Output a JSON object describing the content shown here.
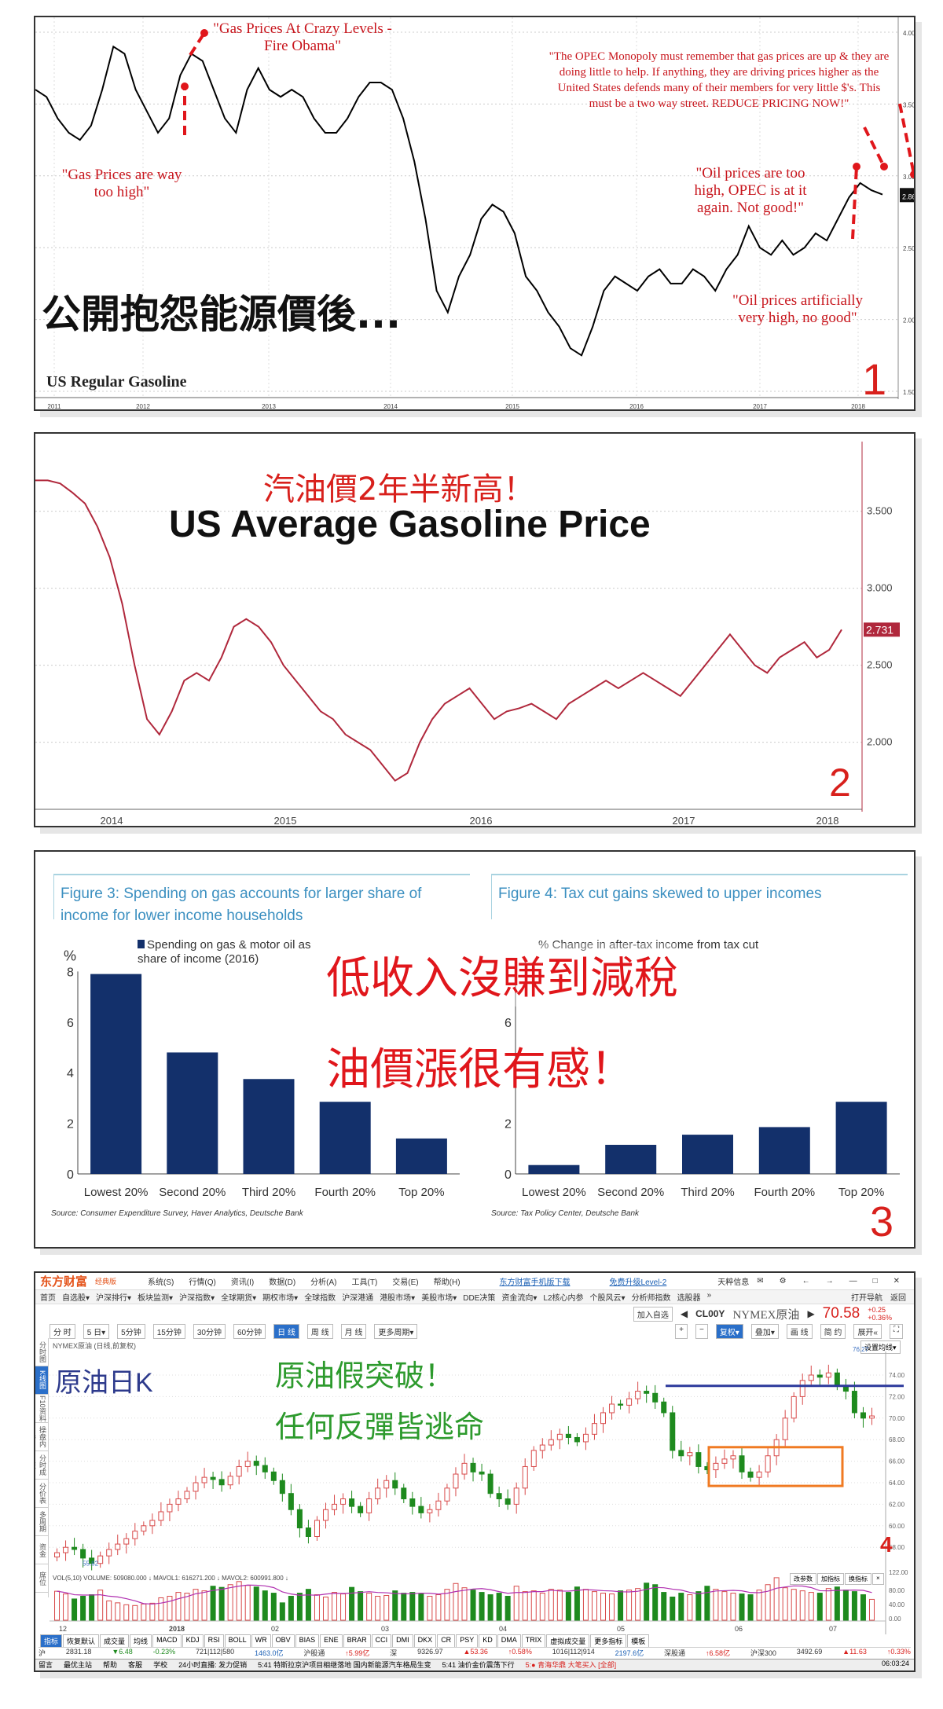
{
  "chart_data": [
    {
      "type": "line",
      "title": "US Regular Gasoline",
      "overlay_text": "公開抱怨能源價後...",
      "panel_number": "1",
      "x_labels": [
        "2011",
        "2012",
        "2013",
        "2014",
        "2015",
        "2016",
        "2017",
        "2018"
      ],
      "y_ticks": [
        "4.000",
        "3.500",
        "3.000",
        "2.500",
        "2.000",
        "1.500"
      ],
      "ylim": [
        1.5,
        4.0
      ],
      "last_value_label": "2.866",
      "line_color": "#000000",
      "values": [
        3.6,
        3.55,
        3.4,
        3.3,
        3.25,
        3.35,
        3.6,
        3.9,
        3.85,
        3.6,
        3.45,
        3.3,
        3.4,
        3.7,
        3.85,
        3.8,
        3.6,
        3.4,
        3.3,
        3.6,
        3.75,
        3.6,
        3.55,
        3.6,
        3.55,
        3.4,
        3.3,
        3.3,
        3.4,
        3.55,
        3.65,
        3.65,
        3.6,
        3.4,
        3.1,
        2.7,
        2.2,
        2.05,
        2.3,
        2.45,
        2.7,
        2.8,
        2.75,
        2.6,
        2.3,
        2.2,
        2.05,
        1.95,
        1.8,
        1.75,
        1.95,
        2.2,
        2.3,
        2.25,
        2.2,
        2.3,
        2.35,
        2.25,
        2.25,
        2.35,
        2.3,
        2.2,
        2.35,
        2.45,
        2.65,
        2.5,
        2.45,
        2.55,
        2.45,
        2.5,
        2.6,
        2.55,
        2.7,
        2.85,
        2.95,
        2.9,
        2.87
      ],
      "annotations": [
        "\"Gas Prices At Crazy Levels - Fire Obama\"",
        "\"Gas Prices are way too high\"",
        "\"The OPEC Monopoly must remember that gas prices are up & they are doing little to help. If anything, they are driving prices higher as the United States defends many of their members for very little $'s. This must be a two way street. REDUCE PRICING NOW!\"",
        "\"Oil prices are too high, OPEC is at it again. Not good!\"",
        "\"Oil prices artificially very high, no good\""
      ]
    },
    {
      "type": "line",
      "title": "US Average Gasoline Price",
      "subtitle": "汽油價2年半新高！",
      "panel_number": "2",
      "x_labels": [
        "2014",
        "2015",
        "2016",
        "2017",
        "2018"
      ],
      "y_ticks": [
        "3.500",
        "3.000",
        "2.500",
        "2.000"
      ],
      "ylim": [
        1.6,
        3.85
      ],
      "last_value_label": "2.731",
      "line_color": "#b0283c",
      "values": [
        3.7,
        3.7,
        3.68,
        3.62,
        3.55,
        3.4,
        3.2,
        2.9,
        2.5,
        2.15,
        2.05,
        2.2,
        2.4,
        2.45,
        2.4,
        2.55,
        2.75,
        2.8,
        2.75,
        2.65,
        2.5,
        2.4,
        2.3,
        2.2,
        2.15,
        2.05,
        2.0,
        1.95,
        1.85,
        1.75,
        1.8,
        2.0,
        2.15,
        2.25,
        2.3,
        2.35,
        2.25,
        2.15,
        2.2,
        2.22,
        2.25,
        2.2,
        2.15,
        2.25,
        2.3,
        2.35,
        2.4,
        2.35,
        2.4,
        2.45,
        2.4,
        2.35,
        2.3,
        2.4,
        2.5,
        2.6,
        2.7,
        2.6,
        2.5,
        2.45,
        2.55,
        2.6,
        2.65,
        2.55,
        2.6,
        2.731
      ]
    },
    {
      "type": "bar",
      "title": "Figure 3: Spending on gas accounts for larger share of income for lower income households",
      "ylabel": "%",
      "legend": "Spending on gas & motor oil as share of income (2016)",
      "source": "Source: Consumer Expenditure Survey, Haver Analytics, Deutsche Bank",
      "categories": [
        "Lowest 20%",
        "Second 20%",
        "Third 20%",
        "Fourth 20%",
        "Top 20%"
      ],
      "values": [
        7.9,
        4.8,
        3.75,
        2.85,
        1.4
      ],
      "ylim": [
        0,
        8
      ],
      "y_ticks": [
        "0",
        "2",
        "4",
        "6",
        "8"
      ],
      "color": "#13306b"
    },
    {
      "type": "bar",
      "title": "Figure 4: Tax cut gains skewed to upper incomes",
      "legend": "% Change in after-tax income from tax cut",
      "source": "Source: Tax Policy Center, Deutsche Bank",
      "categories": [
        "Lowest 20%",
        "Second 20%",
        "Third 20%",
        "Fourth 20%",
        "Top 20%"
      ],
      "values": [
        0.35,
        1.15,
        1.55,
        1.85,
        2.85
      ],
      "ylim": [
        0,
        8
      ],
      "y_ticks": [
        "0",
        "2",
        "6"
      ],
      "color": "#13306b",
      "overlay_lines": [
        "低收入沒賺到減稅",
        "油價漲很有感！"
      ],
      "panel_number": "3"
    },
    {
      "type": "candlestick",
      "title": "NYMEX原油 (日线,前复权)",
      "label": "原油日K",
      "overlay_lines": [
        "原油假突破！",
        "任何反彈皆逃命"
      ],
      "panel_number": "4",
      "y_ticks": [
        "74.00",
        "72.00",
        "70.00",
        "68.00",
        "66.00",
        "64.00",
        "62.00",
        "60.00",
        "58.00"
      ],
      "ylim": [
        56.5,
        76.5
      ],
      "max_label": "76.27",
      "min_label": "55.82",
      "resistance_level": 73.0,
      "box_range": [
        63.7,
        67.3
      ],
      "x_labels": [
        "12",
        "2018",
        "02",
        "03",
        "04",
        "05",
        "06",
        "07"
      ],
      "closes": [
        57.5,
        58,
        57.8,
        57,
        56.5,
        57.2,
        57.8,
        58.3,
        58.8,
        59.5,
        60,
        60.5,
        61.3,
        62,
        62.5,
        63.2,
        64,
        64.5,
        64.3,
        63.8,
        64.6,
        65.5,
        66,
        65.6,
        65,
        64.2,
        63,
        61.5,
        59.8,
        59,
        60.5,
        61.5,
        62,
        62.5,
        61.8,
        61.2,
        62.5,
        63.5,
        64.2,
        63.5,
        62.5,
        61.8,
        61.2,
        61.5,
        62.3,
        63.5,
        64.8,
        65.8,
        65,
        64.8,
        63,
        62.5,
        62,
        63.5,
        65.5,
        67,
        67.5,
        68,
        68.5,
        68.2,
        67.8,
        68.5,
        69.5,
        70.5,
        71.3,
        71.2,
        71.8,
        72.5,
        72.3,
        71.5,
        70.5,
        67,
        66.5,
        66.8,
        65.5,
        65.2,
        65.8,
        66.2,
        66.5,
        65,
        64.5,
        65,
        66.5,
        68,
        70,
        72,
        73.5,
        74,
        73.8,
        74.2,
        73,
        72.5,
        70.5,
        70,
        70.2
      ],
      "volumes": [
        75,
        68,
        55,
        62,
        66,
        78,
        50,
        45,
        40,
        38,
        42,
        44,
        58,
        62,
        72,
        70,
        80,
        76,
        88,
        85,
        92,
        100,
        90,
        86,
        76,
        70,
        45,
        62,
        70,
        80,
        66,
        60,
        72,
        68,
        85,
        74,
        70,
        62,
        64,
        76,
        70,
        72,
        68,
        62,
        66,
        80,
        95,
        84,
        78,
        72,
        66,
        70,
        62,
        88,
        74,
        76,
        70,
        80,
        78,
        72,
        86,
        80,
        74,
        70,
        68,
        76,
        78,
        82,
        96,
        92,
        72,
        60,
        70,
        66,
        74,
        88,
        80,
        74,
        70,
        68,
        66,
        78,
        92,
        110,
        84,
        80,
        76,
        72,
        70,
        82,
        86,
        78,
        74,
        66,
        54
      ],
      "volume_panel": {
        "header": "VOL(5,10)  VOLUME: 509080.000 ↓  MAVOL1: 616271.200 ↓  MAVOL2: 600991.800 ↓",
        "y_ticks": [
          "122.00",
          "80.00",
          "40.00",
          "0.00"
        ],
        "buttons": [
          "改参数",
          "加指标",
          "换指标",
          "×"
        ]
      }
    }
  ],
  "app": {
    "logo": "东方财富",
    "logo_sub": "经典版",
    "menu": [
      "系统(S)",
      "行情(Q)",
      "资讯(I)",
      "数据(D)",
      "分析(A)",
      "工具(T)",
      "交易(E)",
      "帮助(H)"
    ],
    "links": [
      "东方财富手机版下载",
      "免费升级Level-2"
    ],
    "user": "天粹信息",
    "window_controls": [
      "✉",
      "⚙",
      "←",
      "→",
      "—",
      "□",
      "✕"
    ],
    "nav": [
      "首页",
      "自选股▾",
      "沪深排行▾",
      "板块监测▾",
      "沪深指数▾",
      "全球期货▾",
      "期权市场▾",
      "全球指数",
      "沪深港通",
      "港股市场▾",
      "美股市场▾",
      "DDE决策",
      "资金流向▾",
      "L2核心内参",
      "个股风云▾",
      "分析师指数",
      "选股器",
      "»"
    ],
    "nav_right": [
      "打开导航",
      "返回"
    ],
    "add_watch": "加入自选",
    "code": "CL00Y",
    "name": "NYMEX原油",
    "price": "70.58",
    "change": "+0.25",
    "change_pct": "+0.36%",
    "periods": [
      "分 时",
      "5 日▾",
      "5分钟",
      "15分钟",
      "30分钟",
      "60分钟",
      "日 线",
      "周 线",
      "月 线",
      "更多周期▾"
    ],
    "tools": [
      "+",
      "−",
      "复权▾",
      "叠加▾",
      "画 线",
      "简 约",
      "展开«",
      "⛶"
    ],
    "side_tabs": [
      "分时图",
      "K线图",
      "F10资料",
      "操盘内参",
      "分时成交",
      "分价表",
      "多周期",
      "资金",
      "席位"
    ],
    "ma_setting": "设置均线▾",
    "indicators": [
      "指标",
      "恢复默认",
      "成交量",
      "均线",
      "MACD",
      "KDJ",
      "RSI",
      "BOLL",
      "WR",
      "OBV",
      "BIAS",
      "ENE",
      "BRAR",
      "CCI",
      "DMI",
      "DKX",
      "CR",
      "PSY",
      "KD",
      "DMA",
      "TRIX",
      "虚拟成交量",
      "更多指标",
      "模板"
    ],
    "status": [
      "沪",
      "2831.18",
      "▼6.48",
      "-0.23%",
      "721|112|580",
      "1463.0亿",
      "沪股通",
      "↑5.99亿",
      "深",
      "9326.97",
      "▲53.36",
      "↑0.58%",
      "1016|112|914",
      "2197.6亿",
      "深股通",
      "↑6.58亿",
      "沪深300",
      "3492.69",
      "▲11.63",
      "↑0.33%"
    ],
    "bottom": [
      "留言",
      "最优主站",
      "帮助",
      "客服",
      "学校",
      "24小时直播: 发力促销",
      "5:41 特斯拉京沪项目相继落地 国内新能源汽车格局生变",
      "5:41 油价金价震荡下行",
      "5:● 青海华鼎 大笔买入 [全部]",
      "06:03:24"
    ]
  }
}
